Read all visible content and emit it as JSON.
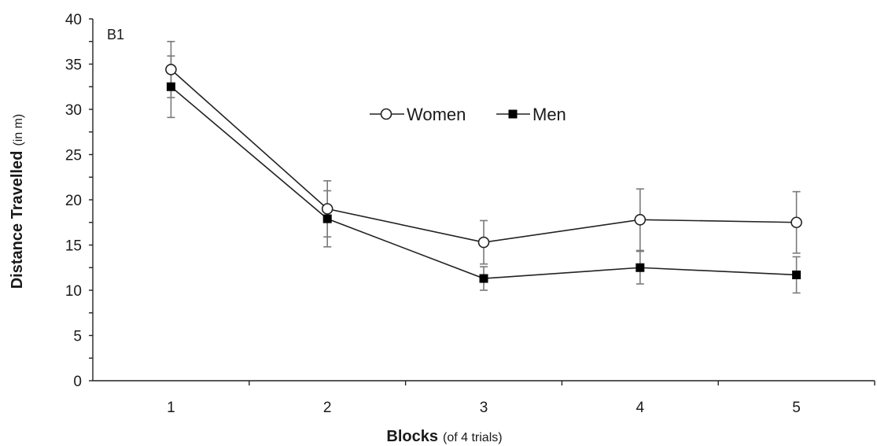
{
  "chart_data": {
    "type": "line",
    "panel_label": "B1",
    "x": [
      1,
      2,
      3,
      4,
      5
    ],
    "xlabel_main": "Blocks",
    "xlabel_sub": "(of 4 trials)",
    "ylabel_main": "Distance Travelled",
    "ylabel_sub": "(in m)",
    "ylim": [
      0,
      40
    ],
    "yticks": [
      0,
      5,
      10,
      15,
      20,
      25,
      30,
      35,
      40
    ],
    "legend_position": "top-center",
    "series": [
      {
        "name": "Women",
        "marker": "open-circle",
        "values": [
          34.4,
          19.0,
          15.3,
          17.8,
          17.5
        ],
        "error": [
          3.1,
          3.1,
          2.4,
          3.4,
          3.4
        ]
      },
      {
        "name": "Men",
        "marker": "filled-square",
        "values": [
          32.5,
          17.9,
          11.3,
          12.5,
          11.7
        ],
        "error": [
          3.4,
          3.1,
          1.3,
          1.8,
          2.0
        ]
      }
    ]
  }
}
